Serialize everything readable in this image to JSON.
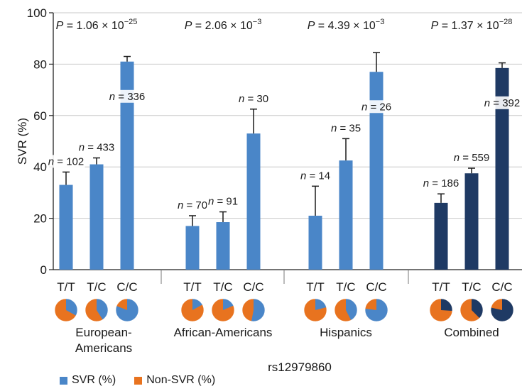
{
  "chart_data": {
    "type": "bar",
    "ylabel": "SVR (%)",
    "xlabel": "rs12979860",
    "ylim": [
      0,
      100
    ],
    "yticks": [
      0,
      20,
      40,
      60,
      80,
      100
    ],
    "grid": true,
    "colors": {
      "svr": "#4a86c8",
      "svr_combined": "#1f3a64",
      "non_svr": "#e8731f"
    },
    "groups": [
      {
        "name": [
          "European-",
          "Americans"
        ],
        "p_value": "P = 1.06 × 10",
        "p_exp": "−25",
        "combined": false,
        "bars": [
          {
            "genotype": "T/T",
            "svr": 33,
            "error": 5,
            "n_label": "n = 102"
          },
          {
            "genotype": "T/C",
            "svr": 41,
            "error": 2.5,
            "n_label": "n = 433"
          },
          {
            "genotype": "C/C",
            "svr": 81,
            "error": 2,
            "n_label": "n = 336"
          }
        ]
      },
      {
        "name": [
          "African-Americans"
        ],
        "p_value": "P = 2.06 × 10",
        "p_exp": "−3",
        "combined": false,
        "bars": [
          {
            "genotype": "T/T",
            "svr": 17,
            "error": 4,
            "n_label": "n = 70"
          },
          {
            "genotype": "T/C",
            "svr": 18.5,
            "error": 4,
            "n_label": "n = 91"
          },
          {
            "genotype": "C/C",
            "svr": 53,
            "error": 9.5,
            "n_label": "n = 30"
          }
        ]
      },
      {
        "name": [
          "Hispanics"
        ],
        "p_value": "P = 4.39 × 10",
        "p_exp": "−3",
        "combined": false,
        "bars": [
          {
            "genotype": "T/T",
            "svr": 21,
            "error": 11.5,
            "n_label": "n = 14"
          },
          {
            "genotype": "T/C",
            "svr": 42.5,
            "error": 8.5,
            "n_label": "n = 35"
          },
          {
            "genotype": "C/C",
            "svr": 77,
            "error": 7.5,
            "n_label": "n = 26"
          }
        ]
      },
      {
        "name": [
          "Combined"
        ],
        "p_value": "P = 1.37 × 10",
        "p_exp": "−28",
        "combined": true,
        "bars": [
          {
            "genotype": "T/T",
            "svr": 26,
            "error": 3.5,
            "n_label": "n = 186"
          },
          {
            "genotype": "T/C",
            "svr": 37.5,
            "error": 2,
            "n_label": "n = 559"
          },
          {
            "genotype": "C/C",
            "svr": 78.5,
            "error": 2,
            "n_label": "n = 392"
          }
        ]
      }
    ],
    "legend": [
      {
        "label": "SVR (%)",
        "color": "#4a86c8"
      },
      {
        "label": "Non-SVR (%)",
        "color": "#e8731f"
      }
    ]
  }
}
